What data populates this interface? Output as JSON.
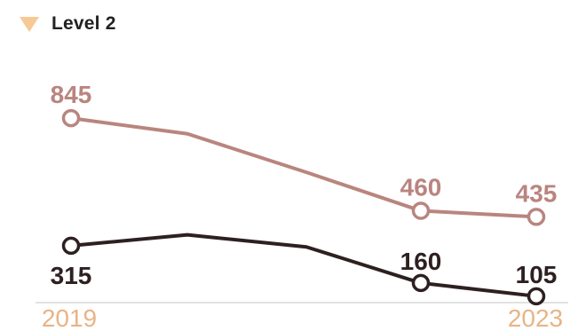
{
  "legend": {
    "label": "Level 2",
    "icon": "triangle-down-icon",
    "icon_color": "#f7c994"
  },
  "chart_data": {
    "type": "line",
    "x": [
      2019,
      2020,
      2021,
      2022,
      2023
    ],
    "x_tick_labels": [
      "2019",
      "2023"
    ],
    "ylim": [
      0,
      1000
    ],
    "grid": false,
    "series": [
      {
        "values": [
          845,
          780,
          620,
          460,
          435
        ],
        "color": "#b9857f",
        "labels": [
          "845",
          "",
          "",
          "460",
          "435"
        ]
      },
      {
        "values": [
          315,
          360,
          310,
          160,
          105
        ],
        "color": "#2e2021",
        "labels": [
          "315",
          "",
          "",
          "160",
          "105"
        ]
      }
    ]
  }
}
